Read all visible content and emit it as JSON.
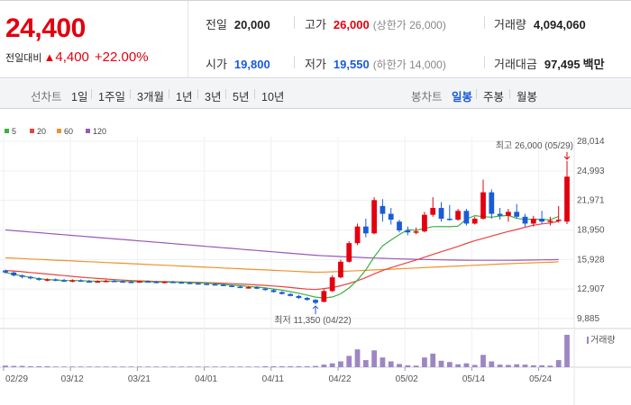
{
  "summary": {
    "price": "24,400",
    "change_label": "전일대비",
    "change_arrow": "▲",
    "change_value": "4,400",
    "change_pct": "+22.00%",
    "prev_close_label": "전일",
    "prev_close": "20,000",
    "high_label": "고가",
    "high": "26,000",
    "high_limit": "(상한가 26,000)",
    "volume_label": "거래량",
    "volume": "4,094,060",
    "open_label": "시가",
    "open": "19,800",
    "low_label": "저가",
    "low": "19,550",
    "low_limit": "(하한가 14,000)",
    "amount_label": "거래대금",
    "amount": "97,495",
    "amount_unit": "백만"
  },
  "toolbar": {
    "line_label": "선차트",
    "line_periods": [
      "1일",
      "1주일",
      "3개월",
      "1년",
      "3년",
      "5년",
      "10년"
    ],
    "candle_label": "봉차트",
    "candle_periods": [
      "일봉",
      "주봉",
      "월봉"
    ],
    "candle_active": "일봉"
  },
  "colors": {
    "up": "#e3000f",
    "down": "#1a5bd6",
    "ma5": "#3cb043",
    "ma20": "#e8453c",
    "ma60": "#f0922b",
    "ma120": "#9b59b6",
    "volume": "#9e86c4"
  },
  "chart_data": {
    "type": "candlestick",
    "legend": [
      "5",
      "20",
      "60",
      "120"
    ],
    "volume_label": "거래량",
    "high_annotation": "최고 26,000 (05/29)",
    "low_annotation": "최저 11,350 (04/22)",
    "y_ticks": [
      "28,014",
      "24,993",
      "21,971",
      "18,950",
      "15,928",
      "12,907",
      "9,885"
    ],
    "ylim": [
      9885,
      28014
    ],
    "x_ticks": [
      "02/29",
      "03/12",
      "03/21",
      "04/01",
      "04/11",
      "04/22",
      "05/02",
      "05/14",
      "05/24"
    ],
    "candles": [
      [
        14800,
        14900,
        14500,
        14600,
        0.05
      ],
      [
        14600,
        14700,
        14200,
        14300,
        0.04
      ],
      [
        14300,
        14400,
        14000,
        14150,
        0.04
      ],
      [
        14150,
        14250,
        13900,
        14000,
        0.03
      ],
      [
        14000,
        14100,
        13750,
        13850,
        0.03
      ],
      [
        13850,
        14000,
        13700,
        13900,
        0.03
      ],
      [
        13900,
        14000,
        13700,
        13800,
        0.02
      ],
      [
        13800,
        13950,
        13650,
        13750,
        0.02
      ],
      [
        13750,
        13900,
        13600,
        13800,
        0.02
      ],
      [
        13800,
        13900,
        13650,
        13700,
        0.02
      ],
      [
        13700,
        13850,
        13600,
        13650,
        0.02
      ],
      [
        13650,
        13800,
        13550,
        13700,
        0.02
      ],
      [
        13700,
        13850,
        13600,
        13750,
        0.02
      ],
      [
        13750,
        13900,
        13650,
        13700,
        0.02
      ],
      [
        13700,
        13800,
        13600,
        13650,
        0.02
      ],
      [
        13650,
        13750,
        13550,
        13600,
        0.02
      ],
      [
        13600,
        13750,
        13550,
        13700,
        0.02
      ],
      [
        13700,
        13800,
        13600,
        13650,
        0.02
      ],
      [
        13650,
        13750,
        13500,
        13550,
        0.02
      ],
      [
        13550,
        13700,
        13500,
        13650,
        0.02
      ],
      [
        13650,
        13750,
        13550,
        13600,
        0.02
      ],
      [
        13600,
        13700,
        13500,
        13550,
        0.02
      ],
      [
        13550,
        13650,
        13450,
        13500,
        0.02
      ],
      [
        13500,
        13600,
        13400,
        13450,
        0.02
      ],
      [
        13450,
        13550,
        13350,
        13400,
        0.02
      ],
      [
        13400,
        13500,
        13300,
        13350,
        0.02
      ],
      [
        13350,
        13450,
        13200,
        13250,
        0.02
      ],
      [
        13250,
        13350,
        13100,
        13150,
        0.02
      ],
      [
        13150,
        13250,
        13000,
        13050,
        0.02
      ],
      [
        13050,
        13200,
        12950,
        13100,
        0.02
      ],
      [
        13100,
        13200,
        12900,
        12950,
        0.02
      ],
      [
        12950,
        13050,
        12750,
        12800,
        0.03
      ],
      [
        12800,
        12900,
        12550,
        12600,
        0.03
      ],
      [
        12600,
        12700,
        12350,
        12400,
        0.03
      ],
      [
        12400,
        12500,
        12150,
        12200,
        0.03
      ],
      [
        12200,
        12300,
        11900,
        12000,
        0.03
      ],
      [
        12000,
        12100,
        11700,
        11800,
        0.03
      ],
      [
        11800,
        11900,
        11350,
        11500,
        0.04
      ],
      [
        11600,
        12900,
        11550,
        12700,
        0.08
      ],
      [
        12700,
        14300,
        12600,
        14100,
        0.12
      ],
      [
        14100,
        15900,
        14000,
        15700,
        0.18
      ],
      [
        15700,
        17800,
        15600,
        17600,
        0.35
      ],
      [
        17600,
        19600,
        17400,
        19300,
        0.55
      ],
      [
        19300,
        20100,
        18200,
        18600,
        0.22
      ],
      [
        18600,
        22300,
        18500,
        22000,
        0.52
      ],
      [
        21400,
        22100,
        19800,
        20600,
        0.3
      ],
      [
        20600,
        21200,
        19500,
        20000,
        0.18
      ],
      [
        19800,
        20000,
        18700,
        18900,
        0.1
      ],
      [
        18900,
        19300,
        18400,
        18700,
        0.06
      ],
      [
        18700,
        19200,
        18500,
        18800,
        0.05
      ],
      [
        18800,
        20800,
        18700,
        20500,
        0.3
      ],
      [
        20500,
        22300,
        20300,
        21200,
        0.42
      ],
      [
        21200,
        21800,
        19800,
        20100,
        0.2
      ],
      [
        20100,
        21500,
        19900,
        20000,
        0.16
      ],
      [
        20000,
        21100,
        19900,
        20900,
        0.09
      ],
      [
        20900,
        21100,
        19400,
        19600,
        0.12
      ],
      [
        19600,
        20300,
        19500,
        20100,
        0.07
      ],
      [
        20100,
        24100,
        20000,
        22800,
        0.38
      ],
      [
        22800,
        23100,
        20100,
        20600,
        0.18
      ],
      [
        20600,
        21200,
        20000,
        20400,
        0.08
      ],
      [
        20400,
        21100,
        19800,
        20800,
        0.07
      ],
      [
        20800,
        21600,
        20100,
        20300,
        0.09
      ],
      [
        20300,
        20600,
        19300,
        19600,
        0.08
      ],
      [
        19600,
        20400,
        19300,
        20100,
        0.06
      ],
      [
        20100,
        20900,
        19600,
        19800,
        0.06
      ],
      [
        19800,
        20300,
        19400,
        19900,
        0.05
      ],
      [
        19900,
        21400,
        19700,
        20000,
        0.22
      ],
      [
        19800,
        26000,
        19550,
        24400,
        1.0
      ]
    ],
    "ma5": [
      14600,
      14420,
      14250,
      14100,
      13960,
      13880,
      13830,
      13790,
      13780,
      13760,
      13720,
      13700,
      13710,
      13710,
      13690,
      13680,
      13670,
      13660,
      13630,
      13620,
      13610,
      13600,
      13570,
      13540,
      13500,
      13450,
      13380,
      13310,
      13240,
      13170,
      13110,
      13020,
      12910,
      12790,
      12650,
      12480,
      12290,
      12080,
      11990,
      12090,
      12420,
      13010,
      13810,
      14860,
      16190,
      17320,
      17910,
      18480,
      18980,
      18910,
      19110,
      19290,
      19300,
      19280,
      19340,
      20050,
      20410,
      20310,
      20260,
      20380,
      20430,
      20140,
      20030,
      20050,
      20020,
      19990,
      20330
    ],
    "ma20": [
      14800,
      14750,
      14680,
      14600,
      14520,
      14440,
      14360,
      14280,
      14200,
      14120,
      14050,
      13990,
      13930,
      13870,
      13820,
      13780,
      13740,
      13710,
      13690,
      13670,
      13650,
      13630,
      13610,
      13590,
      13560,
      13530,
      13500,
      13460,
      13420,
      13380,
      13330,
      13280,
      13220,
      13150,
      13070,
      12980,
      12900,
      12860,
      12960,
      13060,
      13240,
      13470,
      13760,
      14080,
      14460,
      14800,
      15090,
      15350,
      15620,
      15880,
      16160,
      16450,
      16720,
      16990,
      17270,
      17570,
      17850,
      18080,
      18320,
      18560,
      18790,
      19000,
      19230,
      19430,
      19570,
      19660,
      19830
    ],
    "ma60": [
      16100,
      16060,
      16020,
      15980,
      15940,
      15900,
      15860,
      15820,
      15780,
      15740,
      15700,
      15660,
      15620,
      15580,
      15540,
      15500,
      15460,
      15420,
      15380,
      15340,
      15300,
      15260,
      15220,
      15180,
      15140,
      15100,
      15060,
      15020,
      14980,
      14940,
      14900,
      14860,
      14820,
      14780,
      14740,
      14700,
      14660,
      14620,
      14640,
      14670,
      14700,
      14740,
      14780,
      14820,
      14860,
      14900,
      14940,
      14980,
      15020,
      15060,
      15100,
      15140,
      15180,
      15220,
      15260,
      15300,
      15340,
      15380,
      15420,
      15460,
      15500,
      15530,
      15560,
      15590,
      15620,
      15650,
      15700
    ],
    "ma120": [
      18950,
      18880,
      18810,
      18740,
      18670,
      18600,
      18530,
      18460,
      18390,
      18320,
      18250,
      18180,
      18110,
      18040,
      17970,
      17900,
      17830,
      17760,
      17690,
      17620,
      17550,
      17480,
      17410,
      17340,
      17270,
      17200,
      17130,
      17060,
      16990,
      16920,
      16850,
      16780,
      16710,
      16640,
      16570,
      16500,
      16430,
      16360,
      16310,
      16270,
      16230,
      16190,
      16150,
      16110,
      16080,
      16050,
      16020,
      15990,
      15970,
      15950,
      15930,
      15910,
      15890,
      15880,
      15870,
      15860,
      15850,
      15850,
      15850,
      15850,
      15850,
      15860,
      15870,
      15880,
      15890,
      15900,
      15920
    ]
  }
}
